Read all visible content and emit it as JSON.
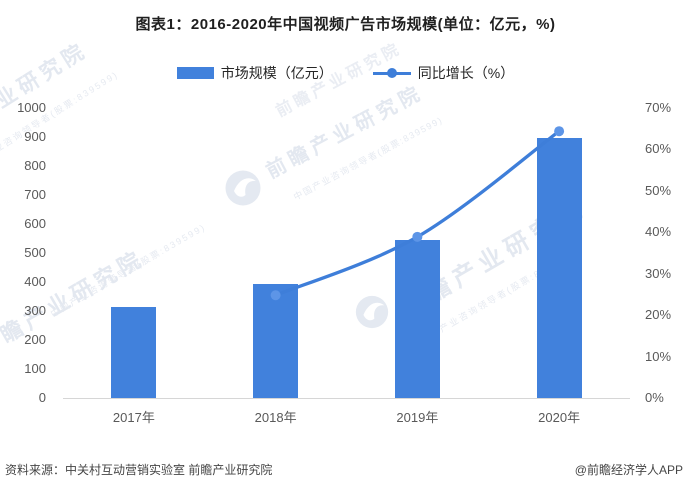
{
  "title": "图表1：2016-2020年中国视频广告市场规模(单位：亿元，%)",
  "legend": {
    "items": [
      {
        "label": "市场规模（亿元）",
        "marker": "bar-swatch"
      },
      {
        "label": "同比增长（%）",
        "marker": "line-dot-swatch"
      }
    ]
  },
  "chart_data": {
    "type": "bar+line combo",
    "categories": [
      "2017年",
      "2018年",
      "2019年",
      "2020年"
    ],
    "series": [
      {
        "name": "市场规模（亿元）",
        "type": "bar",
        "axis": "left",
        "values": [
          315,
          393,
          546,
          898
        ]
      },
      {
        "name": "同比增长（%）",
        "type": "line",
        "axis": "right",
        "values": [
          null,
          24.8,
          38.9,
          64.4
        ]
      }
    ],
    "left_axis": {
      "min": 0,
      "max": 1000,
      "step": 100,
      "ticks": [
        "1000",
        "900",
        "800",
        "700",
        "600",
        "500",
        "400",
        "300",
        "200",
        "100",
        "0"
      ]
    },
    "right_axis": {
      "min": 0,
      "max": 70,
      "step": 10,
      "ticks": [
        "70%",
        "60%",
        "50%",
        "40%",
        "30%",
        "20%",
        "10%",
        "0%"
      ]
    },
    "grid": false,
    "legend_position": "top"
  },
  "footer": {
    "source": "资料来源：中关村互动营销实验室 前瞻产业研究院",
    "credit": "@前瞻经济学人APP"
  },
  "watermark": {
    "brand": "前瞻产业研究院",
    "sub": "中国产业咨询领导者(股票:839599)"
  },
  "colors": {
    "bar": "#4181DC",
    "line": "#3E7ED9",
    "marker": "#5D95E7",
    "axis_text": "#595959"
  }
}
